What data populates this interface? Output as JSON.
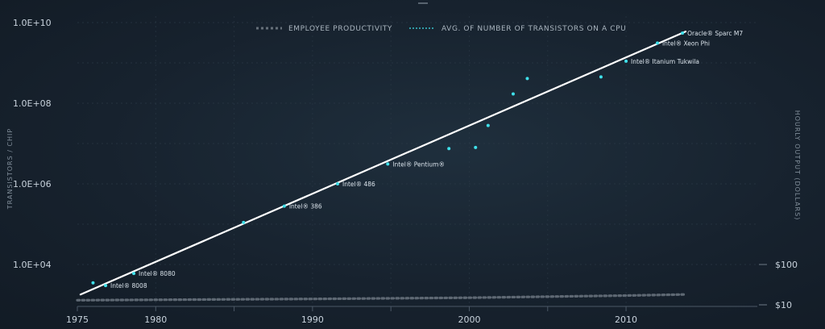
{
  "chart_data": {
    "type": "scatter",
    "legend": {
      "placement": "top-center",
      "entries": [
        "EMPLOYEE PRODUCTIVITY",
        "AVG. OF NUMBER OF TRANSISTORS ON A CPU"
      ]
    },
    "ylabel_left": "TRANSISTORS / CHIP",
    "ylabel_right": "HOURLY OUTPUT (DOLLARS)",
    "xlim": [
      1975,
      2014
    ],
    "x_ticks": [
      "1975",
      "1980",
      "1990",
      "2000",
      "2010"
    ],
    "y_left_ticks": [
      "1.0E+10",
      "1.0E+08",
      "1.0E+06",
      "1.0E+04"
    ],
    "y_left_scale": "log",
    "y_left_range": [
      1000,
      10000000000
    ],
    "y_right_ticks": [
      "$100",
      "$10"
    ],
    "colors": {
      "points": "#3fe0ea",
      "trend": "#ffffff",
      "productivity": "#5e6873",
      "grid": "#2b3946"
    },
    "transistor_points": [
      {
        "x": 1976,
        "y": 3500
      },
      {
        "x": 1976.8,
        "y": 3000,
        "label": "Intel® 8008"
      },
      {
        "x": 1978.6,
        "y": 6000,
        "label": "Intel® 8080"
      },
      {
        "x": 1985.6,
        "y": 110000
      },
      {
        "x": 1988.2,
        "y": 280000,
        "label": "Intel® 386"
      },
      {
        "x": 1991.6,
        "y": 1000000,
        "label": "Intel® 486"
      },
      {
        "x": 1994.8,
        "y": 3100000,
        "label": "Intel® Pentium®"
      },
      {
        "x": 1998.7,
        "y": 7500000
      },
      {
        "x": 2000.4,
        "y": 8000000
      },
      {
        "x": 2001.2,
        "y": 28000000
      },
      {
        "x": 2002.8,
        "y": 170000000
      },
      {
        "x": 2003.7,
        "y": 410000000
      },
      {
        "x": 2008.4,
        "y": 450000000
      },
      {
        "x": 2010.0,
        "y": 1100000000,
        "label": "Intel® Itanium Tukwila"
      },
      {
        "x": 2012.0,
        "y": 3100000000,
        "label": "Intel® Xeon Phi"
      },
      {
        "x": 2013.6,
        "y": 5500000000,
        "label": "Oracle® Sparc M7"
      }
    ],
    "trend_line": [
      {
        "x": 1975.2,
        "y": 1800
      },
      {
        "x": 2013.8,
        "y": 6000000000
      }
    ],
    "productivity_series": [
      {
        "x": 1975,
        "y": 13
      },
      {
        "x": 1990,
        "y": 14
      },
      {
        "x": 2000,
        "y": 15
      },
      {
        "x": 2010,
        "y": 17
      },
      {
        "x": 2013.7,
        "y": 18
      }
    ],
    "y_right_scale": "log",
    "y_right_range": [
      10,
      100
    ]
  }
}
